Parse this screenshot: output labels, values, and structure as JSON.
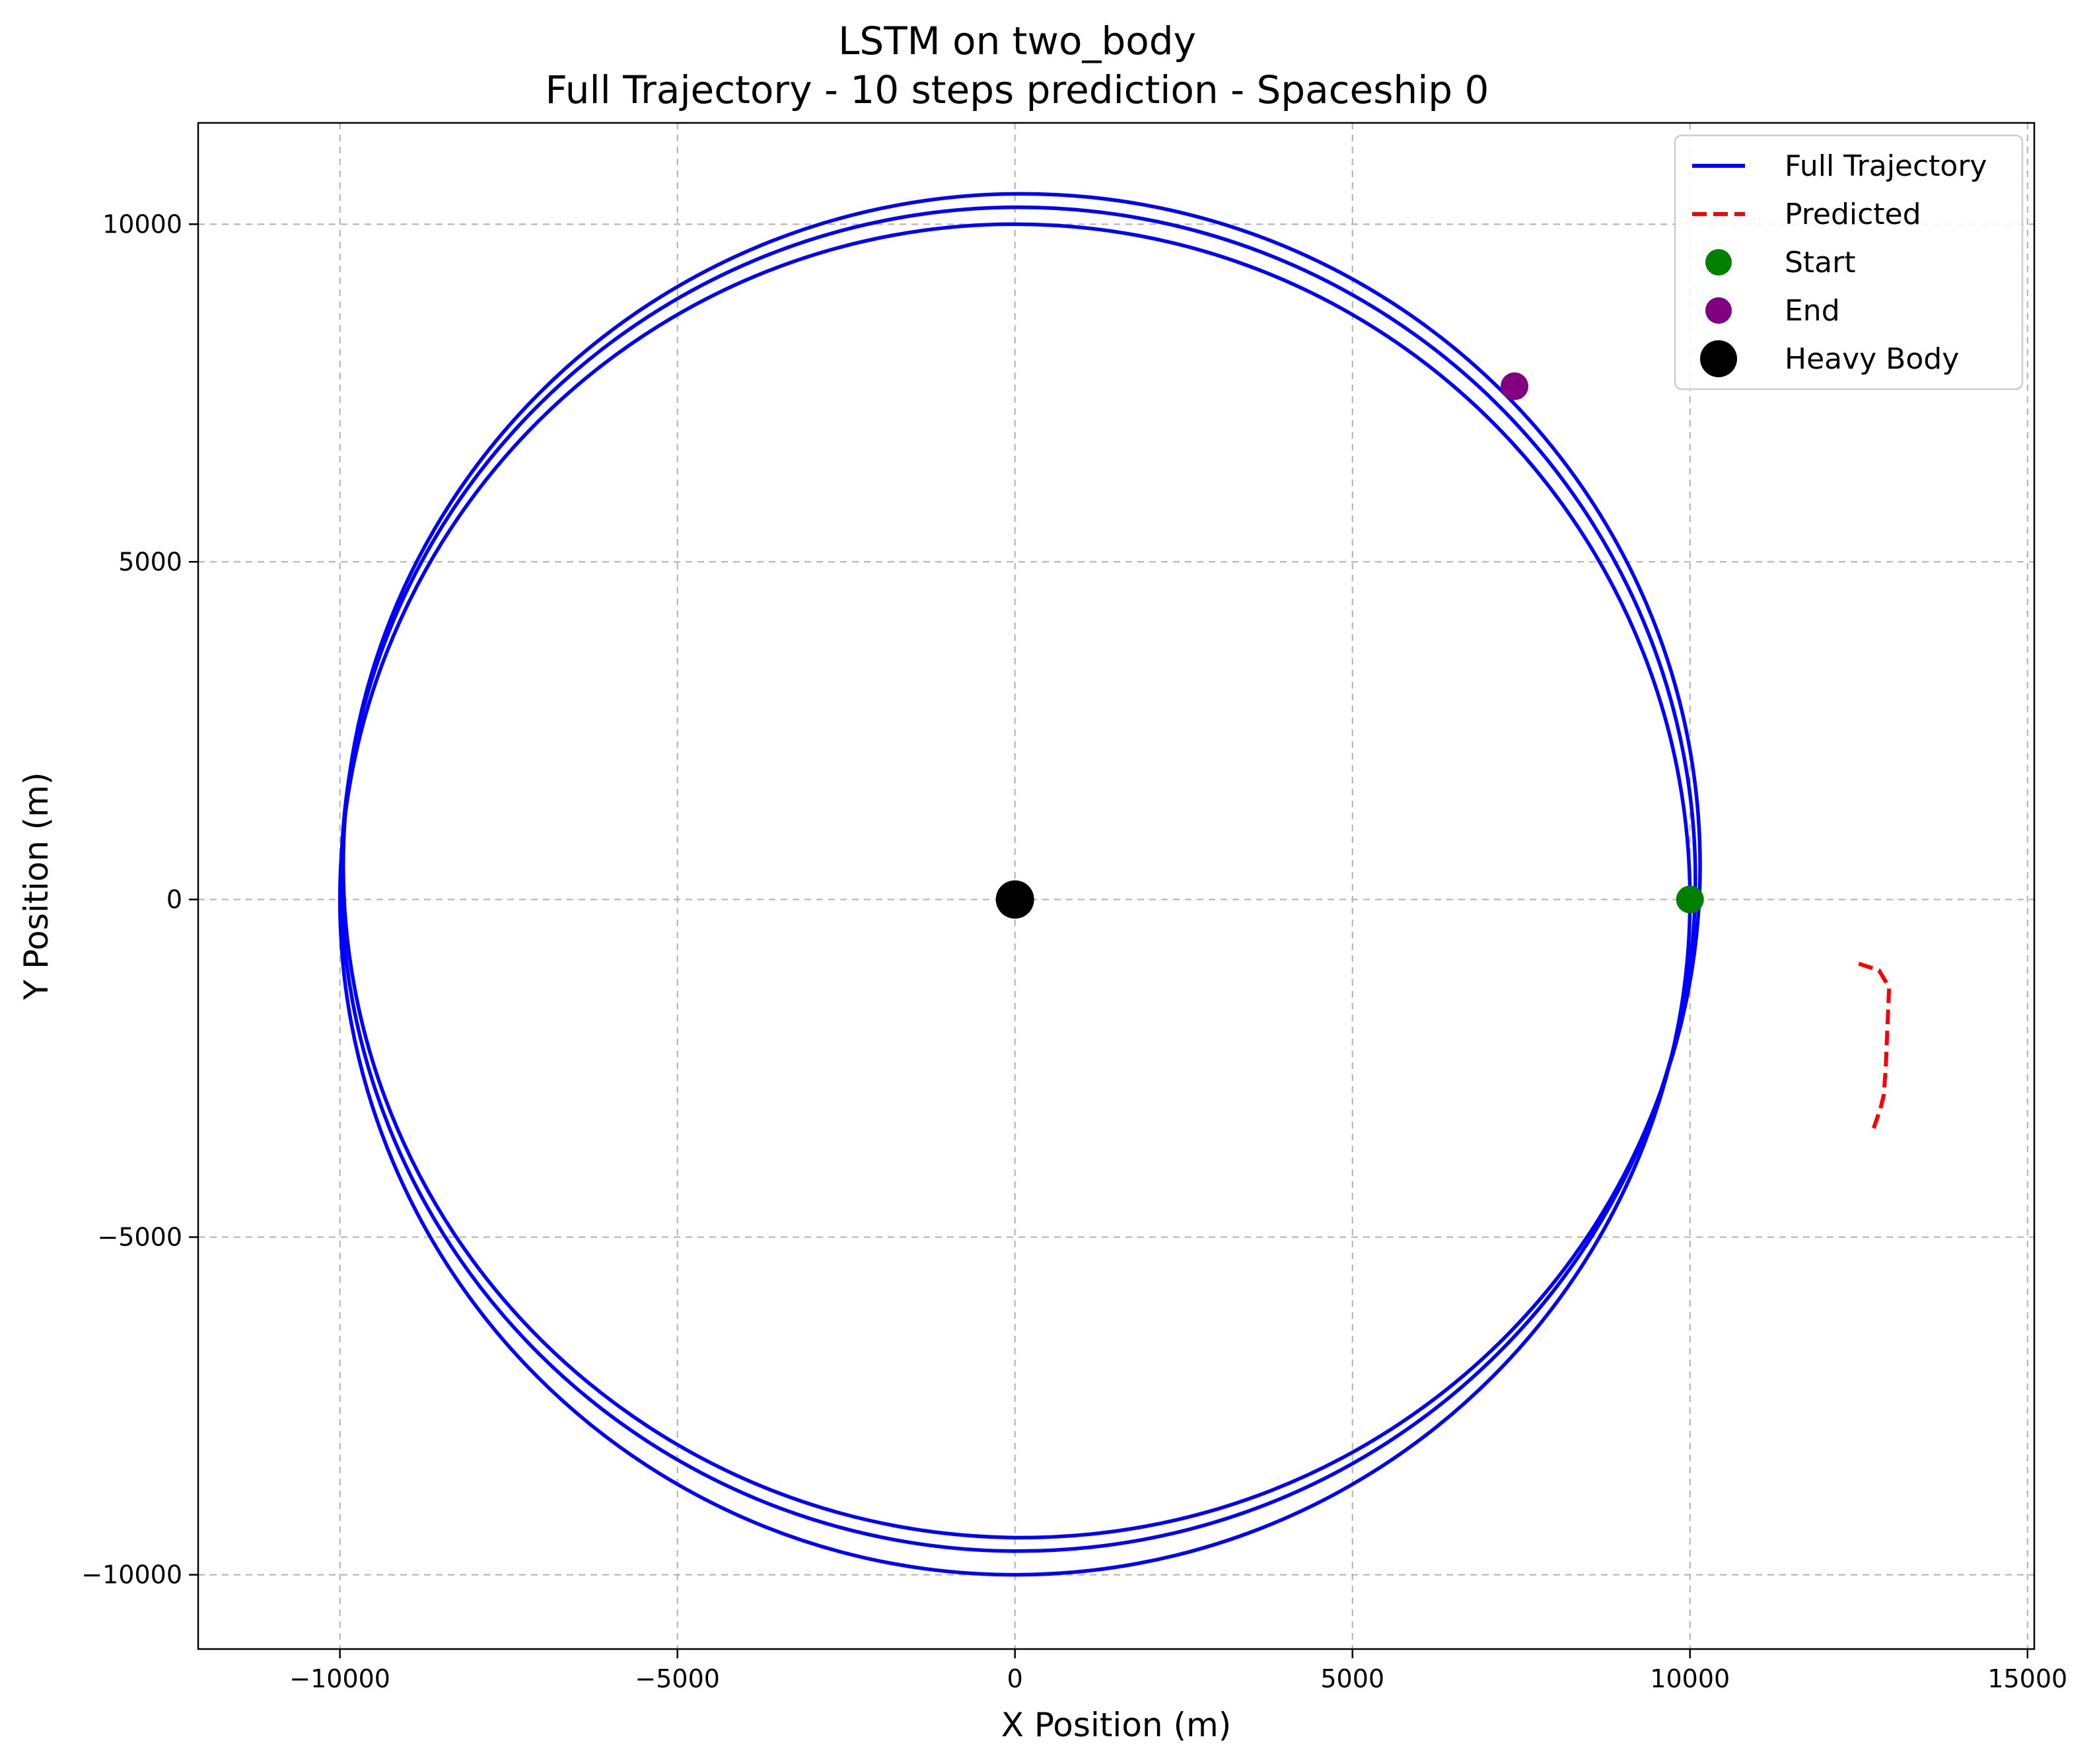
{
  "chart_data": {
    "type": "line",
    "title": "LSTM on two_body",
    "subtitle": "Full Trajectory - 10 steps prediction - Spaceship 0",
    "xlabel": "X Position (m)",
    "ylabel": "Y Position (m)",
    "xlim": [
      -12100,
      15100
    ],
    "ylim": [
      -11100,
      11500
    ],
    "grid": true,
    "legend_position": "top-right",
    "x_ticks": [
      -10000,
      -5000,
      0,
      5000,
      10000,
      15000
    ],
    "x_tick_labels": [
      "−10000",
      "−5000",
      "0",
      "5000",
      "10000",
      "15000"
    ],
    "y_ticks": [
      -10000,
      -5000,
      0,
      5000,
      10000
    ],
    "y_tick_labels": [
      "−10000",
      "−5000",
      "0",
      "5000",
      "10000"
    ],
    "full_trajectory": {
      "name": "Full Trajectory",
      "color": "#0000ff",
      "description": "three slowly drifting near-circular orbits around origin",
      "orbits": [
        {
          "center_x": 0,
          "center_y": 0,
          "rx": 10000,
          "ry": 10000
        },
        {
          "center_x": 50,
          "center_y": 300,
          "rx": 10030,
          "ry": 9950
        },
        {
          "center_x": 100,
          "center_y": 500,
          "rx": 10050,
          "ry": 9950
        }
      ]
    },
    "predicted": {
      "name": "Predicted",
      "color": "#ff0000",
      "x": [
        12500,
        12800,
        12950,
        12920,
        12900,
        12870,
        12820,
        12700
      ],
      "y": [
        -950,
        -1050,
        -1300,
        -2000,
        -2500,
        -2900,
        -3100,
        -3450
      ]
    },
    "start": {
      "name": "Start",
      "color": "#008000",
      "x": 10000,
      "y": 0
    },
    "end": {
      "name": "End",
      "color": "#800080",
      "x": 7400,
      "y": 7600
    },
    "heavy_body": {
      "name": "Heavy Body",
      "color": "#000000",
      "x": 0,
      "y": 0
    }
  }
}
